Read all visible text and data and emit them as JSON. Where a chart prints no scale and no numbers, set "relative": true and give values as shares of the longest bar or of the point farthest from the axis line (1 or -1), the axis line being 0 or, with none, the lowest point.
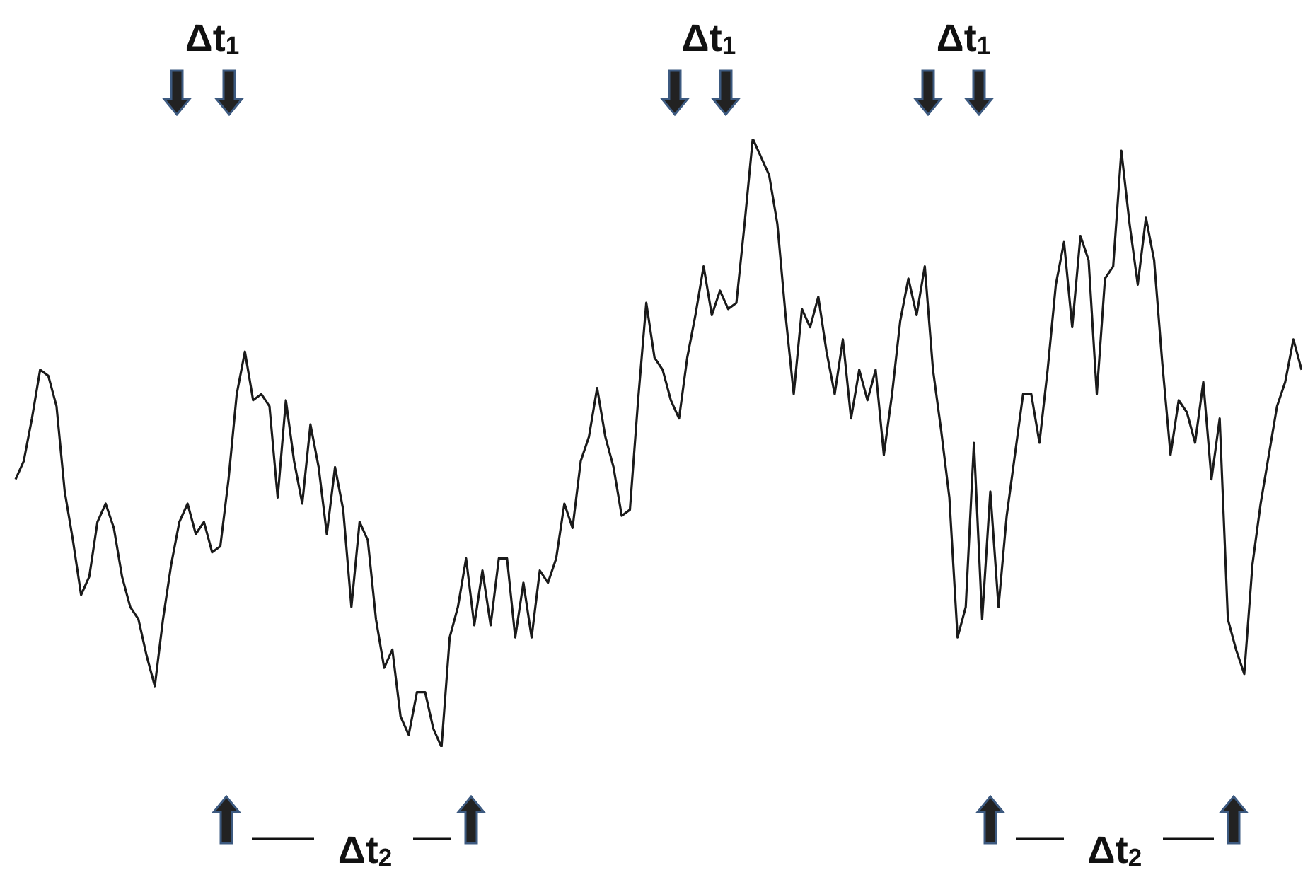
{
  "chart_data": {
    "type": "line",
    "relative": true,
    "categories": [
      null,
      null,
      null,
      null,
      null,
      null,
      null,
      null,
      null,
      null,
      null,
      null,
      null,
      null,
      null,
      null,
      null,
      null,
      null,
      null,
      null,
      null,
      null,
      null,
      null,
      null,
      null,
      null,
      null,
      null,
      null,
      null,
      null,
      null,
      null,
      null,
      null,
      null,
      null,
      null,
      null,
      null,
      null,
      null,
      null,
      null,
      null,
      null,
      null,
      null,
      null,
      null,
      null,
      null,
      null,
      null,
      null,
      null,
      null,
      null,
      null,
      null,
      null,
      null,
      null,
      null,
      null,
      null,
      null,
      null,
      null,
      null,
      null,
      null,
      null,
      null,
      null,
      null,
      null,
      null,
      null,
      null,
      null,
      null,
      null,
      null,
      null,
      null,
      null,
      null,
      null,
      null,
      null,
      null,
      null,
      null,
      null,
      null,
      null,
      null,
      null,
      null,
      null,
      null,
      null,
      null,
      null,
      null,
      null,
      null,
      null,
      null,
      null,
      null,
      null,
      null,
      null,
      null,
      null,
      null,
      null,
      null,
      null,
      null,
      null,
      null,
      null,
      null,
      null,
      null,
      null,
      null,
      null,
      null,
      null,
      null,
      null,
      null,
      null,
      null,
      null,
      null,
      null,
      null,
      null,
      null,
      null,
      null,
      null,
      null,
      null,
      null,
      null,
      null,
      null,
      null,
      null,
      null
    ],
    "series": [
      {
        "color": "#1a1a1a",
        "values": [
          0.44,
          0.47,
          0.54,
          0.62,
          0.61,
          0.56,
          0.42,
          0.34,
          0.25,
          0.28,
          0.37,
          0.4,
          0.36,
          0.28,
          0.23,
          0.21,
          0.15,
          0.1,
          0.21,
          0.3,
          0.37,
          0.4,
          0.35,
          0.37,
          0.32,
          0.33,
          0.44,
          0.58,
          0.65,
          0.57,
          0.58,
          0.56,
          0.41,
          0.57,
          0.47,
          0.4,
          0.53,
          0.46,
          0.35,
          0.46,
          0.39,
          0.23,
          0.37,
          0.34,
          0.21,
          0.13,
          0.16,
          0.05,
          0.02,
          0.09,
          0.09,
          0.03,
          0,
          0.18,
          0.23,
          0.31,
          0.2,
          0.29,
          0.2,
          0.31,
          0.31,
          0.18,
          0.27,
          0.18,
          0.29,
          0.27,
          0.31,
          0.4,
          0.36,
          0.47,
          0.51,
          0.59,
          0.51,
          0.46,
          0.38,
          0.39,
          0.57,
          0.73,
          0.64,
          0.62,
          0.57,
          0.54,
          0.64,
          0.71,
          0.79,
          0.71,
          0.75,
          0.72,
          0.73,
          0.86,
          1,
          0.97,
          0.94,
          0.86,
          0.71,
          0.58,
          0.72,
          0.69,
          0.74,
          0.65,
          0.58,
          0.67,
          0.54,
          0.62,
          0.57,
          0.62,
          0.48,
          0.58,
          0.7,
          0.77,
          0.71,
          0.79,
          0.62,
          0.52,
          0.41,
          0.18,
          0.23,
          0.5,
          0.21,
          0.42,
          0.23,
          0.38,
          0.48,
          0.58,
          0.58,
          0.5,
          0.62,
          0.76,
          0.83,
          0.69,
          0.84,
          0.8,
          0.58,
          0.77,
          0.79,
          0.98,
          0.86,
          0.76,
          0.87,
          0.8,
          0.63,
          0.48,
          0.57,
          0.55,
          0.5,
          0.6,
          0.44,
          0.54,
          0.21,
          0.16,
          0.12,
          0.3,
          0.4,
          0.48,
          0.56,
          0.6,
          0.67,
          0.62
        ]
      }
    ],
    "annotations": [
      "Δt$_{1}$",
      "Δt$_{1}$",
      "Δt$_{1}$",
      "Δt$_{2}$",
      "Δt$_{2}$"
    ]
  }
}
